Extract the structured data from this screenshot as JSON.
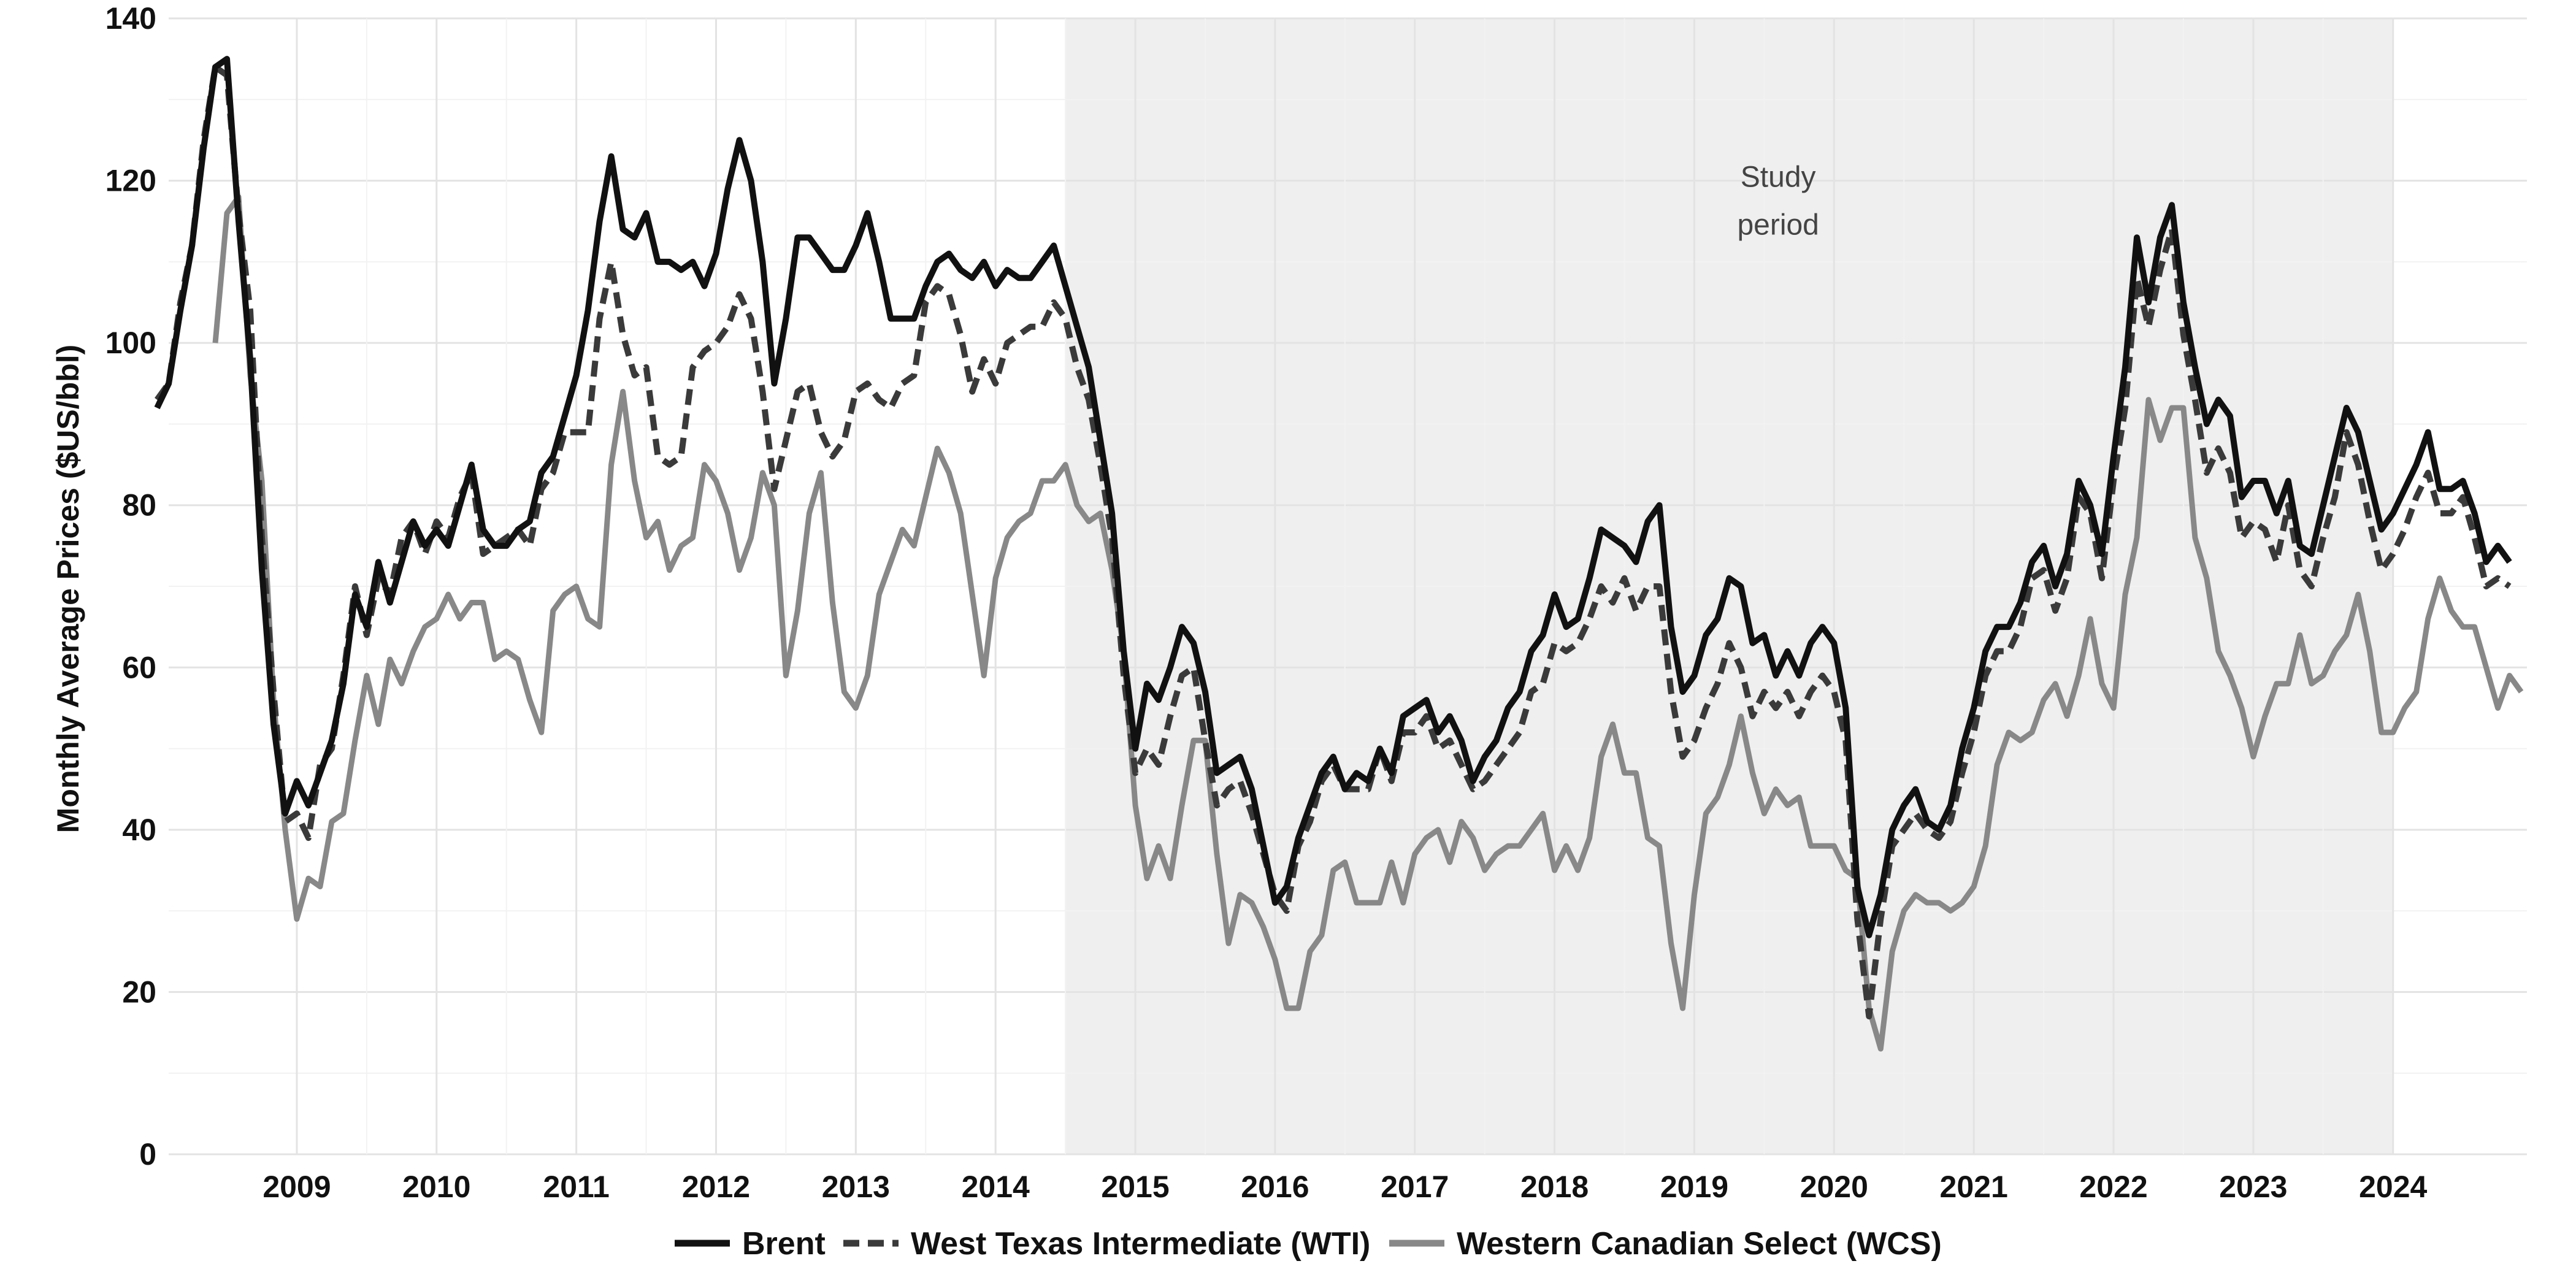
{
  "chart_data": {
    "type": "line",
    "title": "",
    "xlabel": "",
    "ylabel": "Monthly Average Prices ($US/bbl)",
    "xlim": [
      2008.083,
      2024.958
    ],
    "ylim": [
      0,
      140
    ],
    "x_tick_labels": [
      "2009",
      "2010",
      "2011",
      "2012",
      "2013",
      "2014",
      "2015",
      "2016",
      "2017",
      "2018",
      "2019",
      "2020",
      "2021",
      "2022",
      "2023",
      "2024"
    ],
    "y_tick_labels": [
      "0",
      "20",
      "40",
      "60",
      "80",
      "100",
      "120",
      "140"
    ],
    "grid": true,
    "legend_position": "bottom",
    "shaded_region": {
      "x_start": 2014.5,
      "x_end": 2024.0,
      "label_line1": "Study",
      "label_line2": "period",
      "label_x": 2019.6,
      "label_y": 117
    },
    "start_year": 2008,
    "series": [
      {
        "name": "Brent",
        "color": "#111111",
        "style": "solid",
        "start_month": 1,
        "values": [
          92,
          95,
          104,
          112,
          124,
          134,
          135,
          115,
          98,
          72,
          53,
          42,
          46,
          43,
          47,
          51,
          58,
          69,
          65,
          73,
          68,
          73,
          78,
          75,
          77,
          75,
          80,
          85,
          77,
          75,
          75,
          77,
          78,
          84,
          86,
          91,
          96,
          104,
          115,
          123,
          114,
          113,
          116,
          110,
          110,
          109,
          110,
          107,
          111,
          119,
          125,
          120,
          110,
          95,
          103,
          113,
          113,
          111,
          109,
          109,
          112,
          116,
          110,
          103,
          103,
          103,
          107,
          110,
          111,
          109,
          108,
          110,
          107,
          109,
          108,
          108,
          110,
          112,
          107,
          102,
          97,
          88,
          79,
          62,
          50,
          58,
          56,
          60,
          65,
          63,
          57,
          47,
          48,
          49,
          45,
          38,
          31,
          33,
          39,
          43,
          47,
          49,
          45,
          47,
          46,
          50,
          47,
          54,
          55,
          56,
          52,
          54,
          51,
          46,
          49,
          51,
          55,
          57,
          62,
          64,
          69,
          65,
          66,
          71,
          77,
          76,
          75,
          73,
          78,
          80,
          65,
          57,
          59,
          64,
          66,
          71,
          70,
          63,
          64,
          59,
          62,
          59,
          63,
          65,
          63,
          55,
          33,
          27,
          32,
          40,
          43,
          45,
          41,
          40,
          43,
          50,
          55,
          62,
          65,
          65,
          68,
          73,
          75,
          70,
          74,
          83,
          80,
          74,
          86,
          97,
          113,
          105,
          113,
          117,
          105,
          97,
          90,
          93,
          91,
          81,
          83,
          83,
          79,
          83,
          75,
          74,
          80,
          86,
          92,
          89,
          83,
          77,
          79,
          82,
          85,
          89,
          82,
          82,
          83,
          79,
          73,
          75,
          73
        ]
      },
      {
        "name": "West Texas Intermediate (WTI)",
        "color": "#3a3a3a",
        "style": "dashed",
        "start_month": 1,
        "values": [
          93,
          95,
          105,
          112,
          125,
          134,
          133,
          116,
          104,
          76,
          57,
          41,
          42,
          39,
          48,
          50,
          59,
          70,
          64,
          71,
          69,
          76,
          78,
          74,
          78,
          76,
          81,
          84,
          74,
          75,
          76,
          77,
          75,
          82,
          84,
          89,
          89,
          89,
          103,
          110,
          101,
          96,
          97,
          86,
          85,
          86,
          97,
          99,
          100,
          102,
          106,
          103,
          94,
          82,
          88,
          94,
          95,
          89,
          86,
          88,
          94,
          95,
          93,
          92,
          95,
          96,
          105,
          107,
          106,
          101,
          94,
          98,
          95,
          100,
          101,
          102,
          102,
          105,
          103,
          97,
          93,
          85,
          76,
          59,
          47,
          50,
          48,
          54,
          59,
          60,
          51,
          43,
          45,
          46,
          42,
          37,
          32,
          30,
          38,
          41,
          46,
          48,
          45,
          45,
          45,
          50,
          46,
          52,
          52,
          54,
          50,
          51,
          48,
          45,
          46,
          48,
          50,
          52,
          57,
          58,
          63,
          62,
          63,
          66,
          70,
          68,
          71,
          67,
          70,
          70,
          57,
          49,
          51,
          55,
          58,
          63,
          60,
          54,
          57,
          55,
          57,
          54,
          57,
          59,
          57,
          51,
          29,
          17,
          29,
          38,
          40,
          42,
          40,
          39,
          41,
          47,
          52,
          59,
          62,
          62,
          65,
          71,
          72,
          67,
          71,
          81,
          79,
          71,
          83,
          92,
          108,
          102,
          109,
          114,
          101,
          93,
          84,
          87,
          84,
          76,
          78,
          77,
          73,
          80,
          72,
          70,
          76,
          81,
          89,
          85,
          78,
          72,
          74,
          77,
          81,
          84,
          79,
          79,
          81,
          76,
          70,
          71,
          70
        ]
      },
      {
        "name": "Western Canadian Select (WCS)",
        "color": "#888888",
        "style": "solid",
        "start_month": 6,
        "values": [
          100,
          116,
          118,
          96,
          83,
          56,
          40,
          29,
          34,
          33,
          41,
          42,
          51,
          59,
          53,
          61,
          58,
          62,
          65,
          66,
          69,
          66,
          68,
          68,
          61,
          62,
          61,
          56,
          52,
          67,
          69,
          70,
          66,
          65,
          85,
          94,
          83,
          76,
          78,
          72,
          75,
          76,
          85,
          83,
          79,
          72,
          76,
          84,
          80,
          59,
          67,
          79,
          84,
          68,
          57,
          55,
          59,
          69,
          73,
          77,
          75,
          81,
          87,
          84,
          79,
          69,
          59,
          71,
          76,
          78,
          79,
          83,
          83,
          85,
          80,
          78,
          79,
          72,
          62,
          43,
          34,
          38,
          34,
          43,
          51,
          51,
          37,
          26,
          32,
          31,
          28,
          24,
          18,
          18,
          25,
          27,
          35,
          36,
          31,
          31,
          31,
          36,
          31,
          37,
          39,
          40,
          36,
          41,
          39,
          35,
          37,
          38,
          38,
          40,
          42,
          35,
          38,
          35,
          39,
          49,
          53,
          47,
          47,
          39,
          38,
          26,
          18,
          32,
          42,
          44,
          48,
          54,
          47,
          42,
          45,
          43,
          44,
          38,
          38,
          38,
          35,
          34,
          18,
          13,
          25,
          30,
          32,
          31,
          31,
          30,
          31,
          33,
          38,
          48,
          52,
          51,
          52,
          56,
          58,
          54,
          59,
          66,
          58,
          55,
          69,
          76,
          93,
          88,
          92,
          92,
          76,
          71,
          62,
          59,
          55,
          49,
          54,
          58,
          58,
          64,
          58,
          59,
          62,
          64,
          69,
          62,
          52,
          52,
          55,
          57,
          66,
          71,
          67,
          65,
          65,
          60,
          55,
          59,
          57
        ]
      }
    ]
  }
}
